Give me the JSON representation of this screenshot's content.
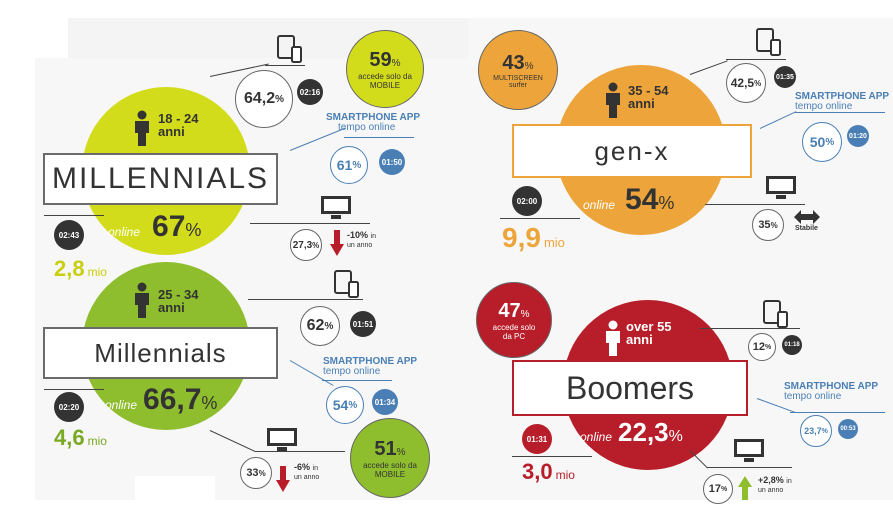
{
  "millennials1": {
    "age": "18 - 24",
    "age_unit": "anni",
    "label": "MILLENNIALS",
    "online_label": "online",
    "online_value": "67",
    "pct": "%",
    "time_total": "02:43",
    "population": "2,8",
    "pop_unit": "mio",
    "devices_value": "64,2",
    "devices_time": "02:16",
    "app_title": "SMARTPHONE APP",
    "app_sub": "tempo online",
    "app_value": "61",
    "app_time": "01:50",
    "pc_value": "27,3",
    "pc_change": "-10%",
    "pc_change_suffix": "in",
    "pc_change_sub": "un anno",
    "mobile_value": "59",
    "mobile_text1": "accede solo da",
    "mobile_text2": "MOBILE"
  },
  "millennials2": {
    "age": "25 - 34",
    "age_unit": "anni",
    "label": "Millennials",
    "online_label": "online",
    "online_value": "66,7",
    "pct": "%",
    "time_total": "02:20",
    "population": "4,6",
    "pop_unit": "mio",
    "devices_value": "62",
    "devices_time": "01:51",
    "app_title": "SMARTPHONE APP",
    "app_sub": "tempo online",
    "app_value": "54",
    "app_time": "01:34",
    "pc_value": "33",
    "pc_change": "-6%",
    "pc_change_suffix": "in",
    "pc_change_sub": "un anno",
    "mobile_value": "51",
    "mobile_text1": "accede solo da",
    "mobile_text2": "MOBILE"
  },
  "genx": {
    "age": "35 - 54",
    "age_unit": "anni",
    "label": "gen-x",
    "online_label": "online",
    "online_value": "54",
    "pct": "%",
    "time_total": "02:00",
    "population": "9,9",
    "pop_unit": "mio",
    "devices_value": "42,5",
    "devices_time": "01:35",
    "app_title": "SMARTPHONE APP",
    "app_sub": "tempo online",
    "app_value": "50",
    "app_time": "01:20",
    "pc_value": "35",
    "pc_change": "Stabile",
    "multiscreen_value": "43",
    "multiscreen_text1": "MULTISCREEN",
    "multiscreen_text2": "surfer"
  },
  "boomers": {
    "age": "over 55",
    "age_unit": "anni",
    "label": "Boomers",
    "online_label": "online",
    "online_value": "22,3",
    "pct": "%",
    "time_total": "01:31",
    "population": "3,0",
    "pop_unit": "mio",
    "devices_value": "12",
    "devices_time": "01:18",
    "app_title": "SMARTPHONE APP",
    "app_sub": "tempo online",
    "app_value": "23,7",
    "app_time": "00:53",
    "pc_value": "17",
    "pc_change": "+2,8%",
    "pc_change_suffix": "in",
    "pc_change_sub": "un anno",
    "pc_only_value": "47",
    "pc_only_text1": "accede solo",
    "pc_only_text2": "da PC"
  },
  "colors": {
    "lime": "#d3dc1b",
    "green": "#8ebd2d",
    "orange": "#eda43a",
    "red": "#b81e2a",
    "blue": "#4a7fb5",
    "dark": "#333333"
  }
}
